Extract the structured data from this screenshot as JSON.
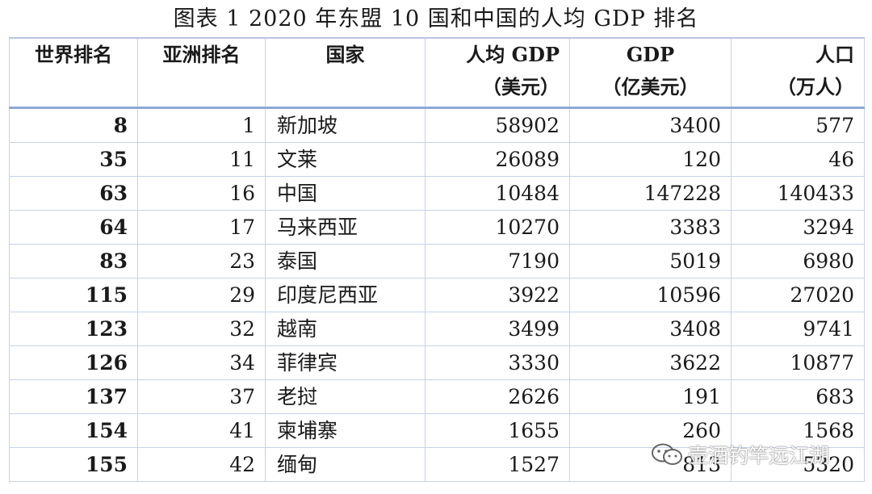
{
  "caption": "图表 1    2020 年东盟 10 国和中国的人均 GDP 排名",
  "headers": {
    "world_rank": "世界排名",
    "asia_rank": "亚洲排名",
    "country": "国家",
    "gdp_per_capita": [
      "人均 GDP",
      "（美元）"
    ],
    "gdp": [
      "GDP",
      "（亿美元）"
    ],
    "population": [
      "人口",
      "（万人）"
    ]
  },
  "rows": [
    {
      "world_rank": "8",
      "asia_rank": "1",
      "country": "新加坡",
      "gdp_per_capita": "58902",
      "gdp": "3400",
      "population": "577"
    },
    {
      "world_rank": "35",
      "asia_rank": "11",
      "country": "文莱",
      "gdp_per_capita": "26089",
      "gdp": "120",
      "population": "46"
    },
    {
      "world_rank": "63",
      "asia_rank": "16",
      "country": "中国",
      "gdp_per_capita": "10484",
      "gdp": "147228",
      "population": "140433"
    },
    {
      "world_rank": "64",
      "asia_rank": "17",
      "country": "马来西亚",
      "gdp_per_capita": "10270",
      "gdp": "3383",
      "population": "3294"
    },
    {
      "world_rank": "83",
      "asia_rank": "23",
      "country": "泰国",
      "gdp_per_capita": "7190",
      "gdp": "5019",
      "population": "6980"
    },
    {
      "world_rank": "115",
      "asia_rank": "29",
      "country": "印度尼西亚",
      "gdp_per_capita": "3922",
      "gdp": "10596",
      "population": "27020"
    },
    {
      "world_rank": "123",
      "asia_rank": "32",
      "country": "越南",
      "gdp_per_capita": "3499",
      "gdp": "3408",
      "population": "9741"
    },
    {
      "world_rank": "126",
      "asia_rank": "34",
      "country": "菲律宾",
      "gdp_per_capita": "3330",
      "gdp": "3622",
      "population": "10877"
    },
    {
      "world_rank": "137",
      "asia_rank": "37",
      "country": "老挝",
      "gdp_per_capita": "2626",
      "gdp": "191",
      "population": "683"
    },
    {
      "world_rank": "154",
      "asia_rank": "41",
      "country": "柬埔寨",
      "gdp_per_capita": "1655",
      "gdp": "260",
      "population": "1568"
    },
    {
      "world_rank": "155",
      "asia_rank": "42",
      "country": "缅甸",
      "gdp_per_capita": "1527",
      "gdp": "813",
      "population": "5320"
    }
  ],
  "watermark": {
    "text": "壶酒钓竿远江湖",
    "icon": "wechat-icon"
  }
}
